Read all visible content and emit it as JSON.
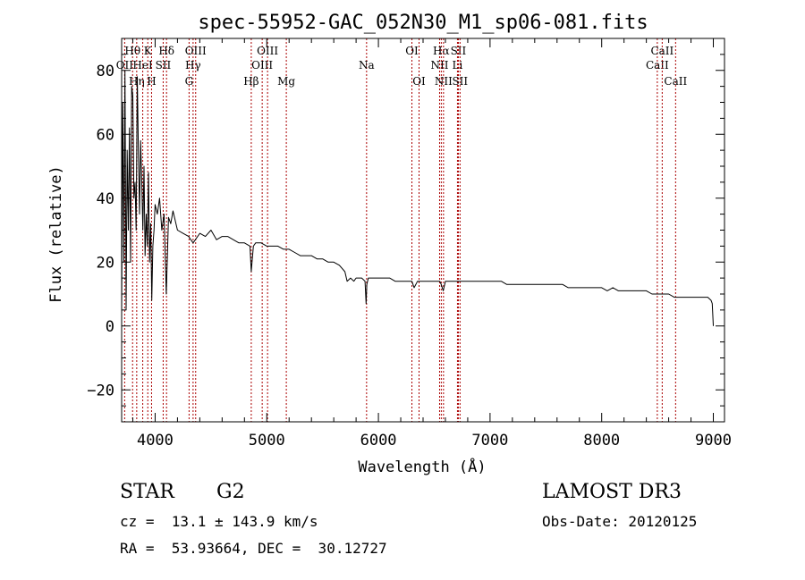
{
  "chart_data": {
    "type": "line",
    "title": "spec-55952-GAC_052N30_M1_sp06-081.fits",
    "xlabel": "Wavelength (Å)",
    "ylabel": "Flux (relative)",
    "xlim": [
      3700,
      9100
    ],
    "ylim": [
      -30,
      90
    ],
    "xticks": [
      4000,
      5000,
      6000,
      7000,
      8000,
      9000
    ],
    "xtick_labels": [
      "4000",
      "5000",
      "6000",
      "7000",
      "8000",
      "9000"
    ],
    "yticks": [
      -20,
      0,
      20,
      40,
      60,
      80
    ],
    "ytick_labels": [
      "−20",
      "0",
      "20",
      "40",
      "60",
      "80"
    ],
    "grid": false,
    "line_color": "#000000",
    "marker_color": "#aa0000",
    "series": [
      {
        "name": "flux",
        "x": [
          3700,
          3710,
          3720,
          3730,
          3740,
          3750,
          3760,
          3770,
          3780,
          3790,
          3800,
          3810,
          3820,
          3830,
          3840,
          3850,
          3860,
          3870,
          3880,
          3890,
          3900,
          3910,
          3920,
          3930,
          3940,
          3950,
          3960,
          3970,
          3980,
          3990,
          4000,
          4020,
          4040,
          4060,
          4080,
          4100,
          4120,
          4140,
          4160,
          4180,
          4200,
          4250,
          4300,
          4340,
          4400,
          4450,
          4500,
          4550,
          4600,
          4650,
          4700,
          4750,
          4800,
          4850,
          4861,
          4880,
          4900,
          4950,
          5000,
          5050,
          5100,
          5150,
          5200,
          5250,
          5300,
          5350,
          5400,
          5450,
          5500,
          5550,
          5600,
          5650,
          5700,
          5720,
          5750,
          5780,
          5800,
          5850,
          5880,
          5890,
          5896,
          5910,
          5950,
          6000,
          6050,
          6100,
          6150,
          6200,
          6250,
          6300,
          6320,
          6350,
          6400,
          6450,
          6500,
          6550,
          6563,
          6580,
          6600,
          6650,
          6700,
          6750,
          6800,
          6850,
          6900,
          6950,
          7000,
          7050,
          7100,
          7150,
          7200,
          7250,
          7300,
          7350,
          7400,
          7450,
          7500,
          7550,
          7600,
          7650,
          7700,
          7750,
          7800,
          7850,
          7900,
          7950,
          8000,
          8050,
          8100,
          8150,
          8200,
          8250,
          8300,
          8350,
          8400,
          8450,
          8500,
          8550,
          8600,
          8650,
          8700,
          8750,
          8800,
          8850,
          8900,
          8950,
          8980,
          8990,
          9000
        ],
        "values": [
          4,
          70,
          20,
          80,
          5,
          55,
          30,
          62,
          20,
          75,
          72,
          40,
          45,
          30,
          78,
          55,
          35,
          58,
          45,
          30,
          50,
          22,
          35,
          25,
          48,
          20,
          32,
          8,
          25,
          30,
          38,
          35,
          40,
          30,
          35,
          10,
          34,
          32,
          36,
          33,
          30,
          29,
          28,
          26,
          29,
          28,
          30,
          27,
          28,
          28,
          27,
          26,
          26,
          25,
          17,
          25,
          26,
          26,
          25,
          25,
          25,
          24,
          24,
          23,
          22,
          22,
          22,
          21,
          21,
          20,
          20,
          19,
          17,
          14,
          15,
          14,
          15,
          15,
          14,
          7,
          13,
          15,
          15,
          15,
          15,
          15,
          14,
          14,
          14,
          14,
          12,
          14,
          14,
          14,
          14,
          14,
          13,
          11,
          14,
          14,
          14,
          14,
          14,
          14,
          14,
          14,
          14,
          14,
          14,
          13,
          13,
          13,
          13,
          13,
          13,
          13,
          13,
          13,
          13,
          13,
          12,
          12,
          12,
          12,
          12,
          12,
          12,
          11,
          12,
          11,
          11,
          11,
          11,
          11,
          11,
          10,
          10,
          10,
          10,
          9,
          9,
          9,
          9,
          9,
          9,
          9,
          8,
          7,
          0
        ]
      }
    ],
    "lines": [
      {
        "name": "OII",
        "x": 3727,
        "row": 1
      },
      {
        "name": "Hθ",
        "x": 3798,
        "row": 0
      },
      {
        "name": "Hη",
        "x": 3835,
        "row": 2
      },
      {
        "name": "HeI",
        "x": 3889,
        "row": 1
      },
      {
        "name": "K",
        "x": 3934,
        "row": 0
      },
      {
        "name": "H",
        "x": 3968,
        "row": 2
      },
      {
        "name": "SII",
        "x": 4072,
        "row": 1
      },
      {
        "name": "Hδ",
        "x": 4102,
        "row": 0
      },
      {
        "name": "G",
        "x": 4304,
        "row": 2
      },
      {
        "name": "Hγ",
        "x": 4340,
        "row": 1
      },
      {
        "name": "OIII",
        "x": 4363,
        "row": 0
      },
      {
        "name": "Hβ",
        "x": 4861,
        "row": 2
      },
      {
        "name": "OIII",
        "x": 4959,
        "row": 1
      },
      {
        "name": "OIII",
        "x": 5007,
        "row": 0
      },
      {
        "name": "Mg",
        "x": 5175,
        "row": 2
      },
      {
        "name": "Na",
        "x": 5894,
        "row": 1
      },
      {
        "name": "OI",
        "x": 6300,
        "row": 0
      },
      {
        "name": "OI",
        "x": 6364,
        "row": 2
      },
      {
        "name": "NII",
        "x": 6548,
        "row": 1
      },
      {
        "name": "Hα",
        "x": 6563,
        "row": 0
      },
      {
        "name": "NII",
        "x": 6583,
        "row": 2
      },
      {
        "name": "Li",
        "x": 6708,
        "row": 1
      },
      {
        "name": "SII",
        "x": 6716,
        "row": 0
      },
      {
        "name": "SII",
        "x": 6731,
        "row": 2
      },
      {
        "name": "CaII",
        "x": 8498,
        "row": 1
      },
      {
        "name": "CaII",
        "x": 8542,
        "row": 0
      },
      {
        "name": "CaII",
        "x": 8662,
        "row": 2
      }
    ]
  },
  "info": {
    "object_class": "STAR",
    "subclass": "G2",
    "survey": "LAMOST DR3",
    "redshift": "cz =  13.1 ± 143.9 km/s",
    "obs_date": "Obs-Date: 20120125",
    "coords": "RA =  53.93664, DEC =  30.12727"
  }
}
